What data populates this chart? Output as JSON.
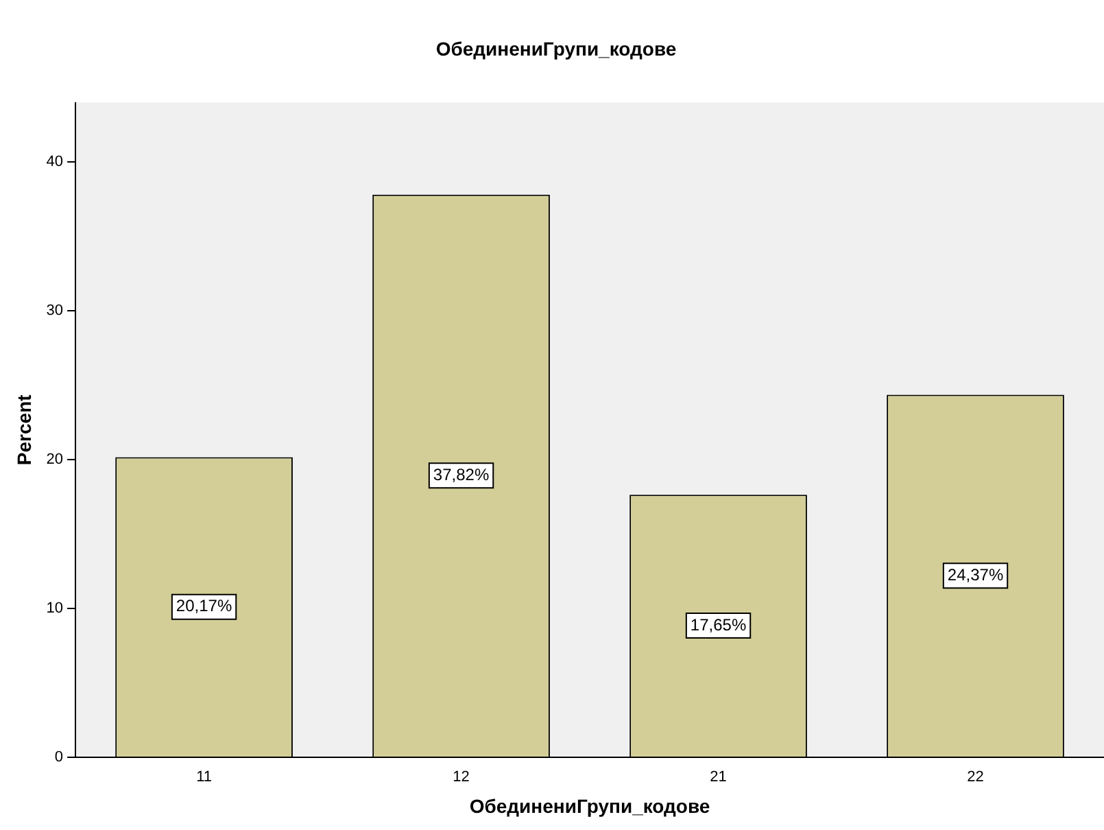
{
  "chart_data": {
    "type": "bar",
    "title": "ОбединениГрупи_кодове",
    "xlabel": "ОбединениГрупи_кодове",
    "ylabel": "Percent",
    "categories": [
      "11",
      "12",
      "21",
      "22"
    ],
    "values": [
      20.17,
      37.82,
      17.65,
      24.37
    ],
    "value_labels": [
      "20,17%",
      "37,82%",
      "17,65%",
      "24,37%"
    ],
    "color": "#d3ce97",
    "ylim": [
      0,
      44
    ],
    "yticks": [
      0,
      10,
      20,
      30,
      40
    ],
    "grid": false,
    "legend": false
  }
}
